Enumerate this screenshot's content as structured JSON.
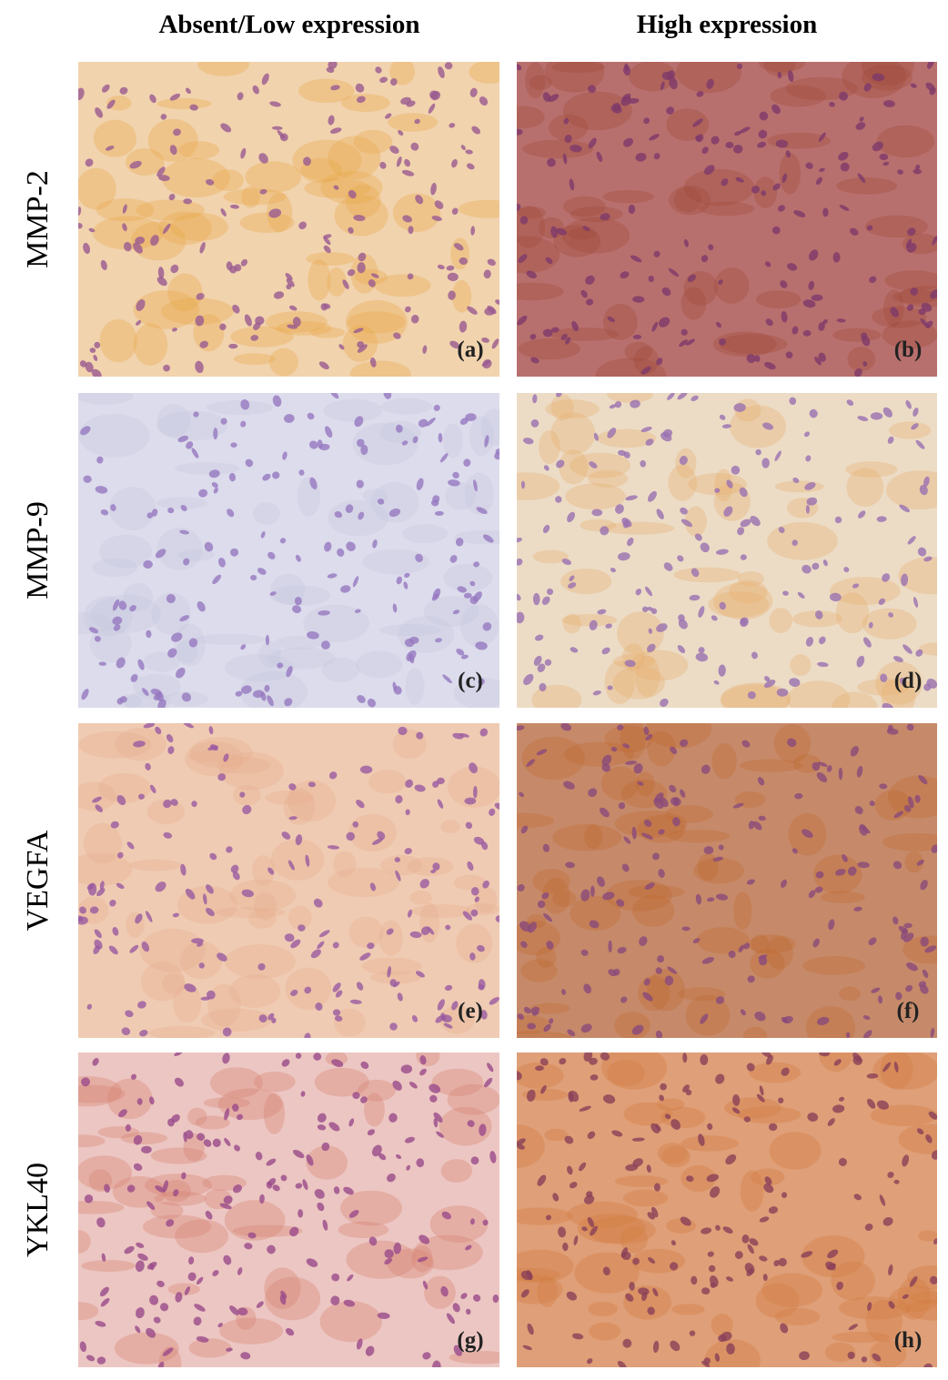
{
  "columns": [
    "Absent/Low expression",
    "High expression"
  ],
  "rows": [
    {
      "label": "MMP-2",
      "panels": [
        "(a)",
        "(b)"
      ]
    },
    {
      "label": "MMP-9",
      "panels": [
        "(c)",
        "(d)"
      ]
    },
    {
      "label": "VEGFA",
      "panels": [
        "(e)",
        "(f)"
      ]
    },
    {
      "label": "YKL40",
      "panels": [
        "(g)",
        "(h)"
      ]
    }
  ]
}
